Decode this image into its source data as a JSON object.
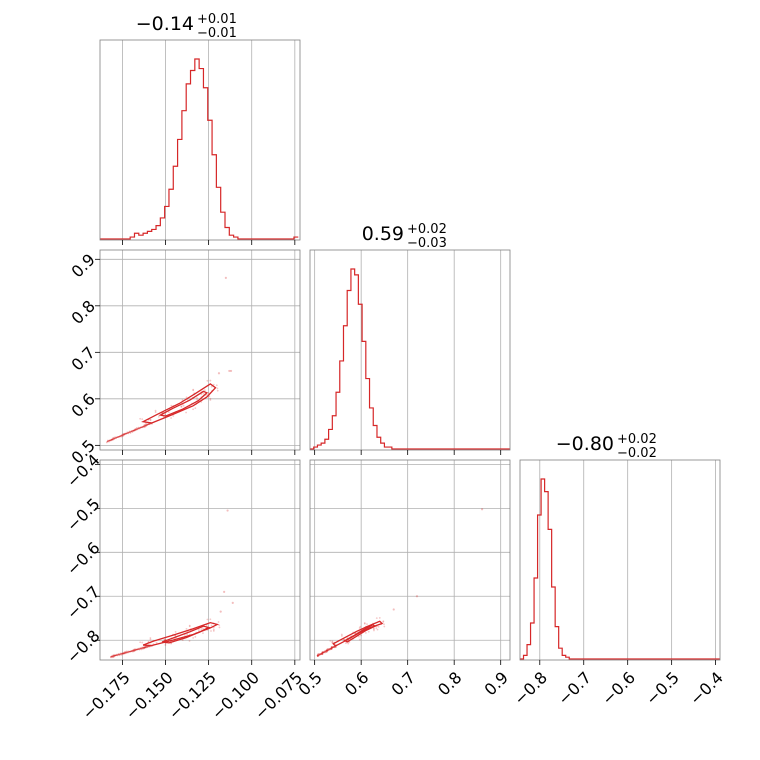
{
  "chart_data": {
    "type": "corner",
    "colors": {
      "main": "#d62728",
      "grid": "#b0b0b0",
      "frame": "#808080"
    },
    "parameters": [
      {
        "title": {
          "median": "−0.14",
          "plus": "+0.01",
          "minus": "−0.01"
        },
        "range": [
          -0.188,
          -0.072
        ],
        "ticks": [
          -0.175,
          -0.15,
          -0.125,
          -0.1,
          -0.075
        ],
        "tick_labels": [
          "−0.175",
          "−0.150",
          "−0.125",
          "−0.100",
          "−0.075"
        ],
        "histogram": {
          "edges_start": -0.188,
          "edges_step": 0.0025,
          "counts": [
            0,
            0,
            0,
            0,
            0,
            0,
            0,
            0.01,
            0.03,
            0.02,
            0.03,
            0.04,
            0.05,
            0.07,
            0.11,
            0.17,
            0.26,
            0.38,
            0.52,
            0.67,
            0.81,
            0.88,
            0.94,
            0.89,
            0.79,
            0.62,
            0.44,
            0.27,
            0.14,
            0.06,
            0.02,
            0.01,
            0,
            0,
            0,
            0,
            0,
            0,
            0,
            0,
            0,
            0,
            0,
            0,
            0,
            0.01
          ]
        }
      },
      {
        "title": {
          "median": "0.59",
          "plus": "+0.02",
          "minus": "−0.03"
        },
        "range": [
          0.49,
          0.92
        ],
        "ticks": [
          0.5,
          0.6,
          0.7,
          0.8,
          0.9
        ],
        "tick_labels": [
          "0.5",
          "0.6",
          "0.7",
          "0.8",
          "0.9"
        ],
        "histogram": {
          "edges_start": 0.49,
          "edges_step": 0.008,
          "counts": [
            0,
            0.01,
            0.02,
            0.03,
            0.05,
            0.1,
            0.17,
            0.29,
            0.45,
            0.63,
            0.81,
            0.92,
            0.89,
            0.74,
            0.55,
            0.36,
            0.21,
            0.12,
            0.06,
            0.03,
            0.01,
            0.01,
            0,
            0,
            0,
            0,
            0,
            0,
            0,
            0,
            0,
            0,
            0,
            0,
            0,
            0,
            0,
            0,
            0,
            0,
            0,
            0,
            0,
            0,
            0,
            0,
            0,
            0,
            0,
            0,
            0,
            0,
            0,
            0
          ]
        }
      },
      {
        "title": {
          "median": "−0.80",
          "plus": "+0.02",
          "minus": "−0.02"
        },
        "range": [
          -0.845,
          -0.39
        ],
        "ticks": [
          -0.8,
          -0.7,
          -0.6,
          -0.5,
          -0.4
        ],
        "tick_labels": [
          "−0.8",
          "−0.7",
          "−0.6",
          "−0.5",
          "−0.4"
        ],
        "histogram": {
          "edges_start": -0.845,
          "edges_step": 0.008,
          "counts": [
            0,
            0.02,
            0.08,
            0.2,
            0.45,
            0.8,
            1.0,
            0.93,
            0.72,
            0.4,
            0.18,
            0.06,
            0.02,
            0.01,
            0,
            0,
            0,
            0,
            0,
            0,
            0,
            0,
            0,
            0,
            0,
            0,
            0,
            0,
            0,
            0,
            0,
            0,
            0,
            0,
            0,
            0,
            0,
            0,
            0,
            0,
            0,
            0,
            0,
            0,
            0,
            0,
            0,
            0,
            0,
            0,
            0,
            0,
            0,
            0,
            0,
            0,
            0
          ]
        }
      }
    ],
    "pairs": [
      {
        "x_param": 0,
        "y_param": 1,
        "contours": [
          {
            "label": "inner",
            "points": [
              [
                -0.15,
                0.563
              ],
              [
                -0.14,
                0.578
              ],
              [
                -0.131,
                0.596
              ],
              [
                -0.126,
                0.613
              ],
              [
                -0.128,
                0.616
              ],
              [
                -0.136,
                0.597
              ],
              [
                -0.146,
                0.579
              ],
              [
                -0.153,
                0.565
              ]
            ]
          },
          {
            "label": "outer",
            "points": [
              [
                -0.158,
                0.548
              ],
              [
                -0.146,
                0.566
              ],
              [
                -0.134,
                0.585
              ],
              [
                -0.126,
                0.604
              ],
              [
                -0.121,
                0.624
              ],
              [
                -0.124,
                0.632
              ],
              [
                -0.132,
                0.613
              ],
              [
                -0.142,
                0.59
              ],
              [
                -0.154,
                0.568
              ],
              [
                -0.163,
                0.551
              ]
            ]
          }
        ],
        "tail": {
          "from": [
            -0.184,
            0.508
          ],
          "to": [
            -0.158,
            0.548
          ]
        },
        "outliers": [
          [
            -0.115,
            0.86
          ],
          [
            -0.112,
            0.66
          ],
          [
            -0.113,
            0.66
          ],
          [
            -0.119,
            0.655
          ]
        ]
      },
      {
        "x_param": 0,
        "y_param": 2,
        "contours": [
          {
            "label": "inner",
            "points": [
              [
                -0.148,
                -0.806
              ],
              [
                -0.138,
                -0.794
              ],
              [
                -0.13,
                -0.781
              ],
              [
                -0.125,
                -0.771
              ],
              [
                -0.128,
                -0.768
              ],
              [
                -0.136,
                -0.781
              ],
              [
                -0.145,
                -0.794
              ],
              [
                -0.152,
                -0.804
              ]
            ]
          },
          {
            "label": "outer",
            "points": [
              [
                -0.158,
                -0.812
              ],
              [
                -0.146,
                -0.8
              ],
              [
                -0.134,
                -0.787
              ],
              [
                -0.124,
                -0.772
              ],
              [
                -0.12,
                -0.764
              ],
              [
                -0.124,
                -0.76
              ],
              [
                -0.134,
                -0.774
              ],
              [
                -0.146,
                -0.789
              ],
              [
                -0.157,
                -0.802
              ],
              [
                -0.163,
                -0.811
              ]
            ]
          }
        ],
        "tail": {
          "from": [
            -0.182,
            -0.838
          ],
          "to": [
            -0.158,
            -0.812
          ]
        },
        "outliers": [
          [
            -0.114,
            -0.505
          ],
          [
            -0.116,
            -0.69
          ],
          [
            -0.111,
            -0.715
          ],
          [
            -0.118,
            -0.735
          ]
        ]
      },
      {
        "x_param": 1,
        "y_param": 2,
        "contours": [
          {
            "label": "inner",
            "points": [
              [
                0.57,
                -0.804
              ],
              [
                0.59,
                -0.791
              ],
              [
                0.61,
                -0.778
              ],
              [
                0.63,
                -0.768
              ],
              [
                0.625,
                -0.765
              ],
              [
                0.605,
                -0.776
              ],
              [
                0.585,
                -0.789
              ],
              [
                0.565,
                -0.801
              ]
            ]
          },
          {
            "label": "outer",
            "points": [
              [
                0.545,
                -0.813
              ],
              [
                0.57,
                -0.799
              ],
              [
                0.595,
                -0.784
              ],
              [
                0.62,
                -0.771
              ],
              [
                0.645,
                -0.762
              ],
              [
                0.64,
                -0.757
              ],
              [
                0.615,
                -0.768
              ],
              [
                0.59,
                -0.78
              ],
              [
                0.565,
                -0.794
              ],
              [
                0.54,
                -0.808
              ]
            ]
          }
        ],
        "tail": {
          "from": [
            0.505,
            -0.836
          ],
          "to": [
            0.545,
            -0.813
          ]
        },
        "outliers": [
          [
            0.86,
            -0.502
          ],
          [
            0.67,
            -0.73
          ],
          [
            0.72,
            -0.7
          ]
        ]
      }
    ]
  }
}
